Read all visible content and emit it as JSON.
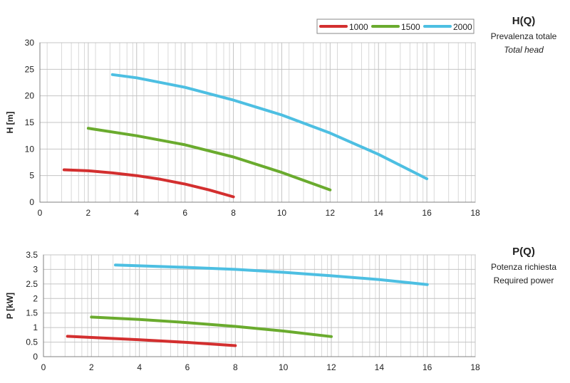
{
  "panels": {
    "head": {
      "title": "H(Q)",
      "subtitle_it": "Prevalenza totale",
      "subtitle_en": "Total head"
    },
    "power": {
      "title": "P(Q)",
      "subtitle_it": "Potenza richiesta",
      "subtitle_en": "Required power"
    }
  },
  "chart_data": [
    {
      "type": "line",
      "title": "H(Q)",
      "xlabel": "",
      "ylabel": "H [m]",
      "xlim": [
        0,
        18
      ],
      "ylim": [
        0,
        30
      ],
      "xticks": [
        0,
        2,
        4,
        6,
        8,
        10,
        12,
        14,
        16,
        18
      ],
      "yticks": [
        0,
        5,
        10,
        15,
        20,
        25,
        30
      ],
      "grid": true,
      "legend": "top-right",
      "series": [
        {
          "name": "1000",
          "color": "#d32f2f",
          "x": [
            1,
            2,
            3,
            4,
            5,
            6,
            7,
            8
          ],
          "y": [
            6.1,
            5.9,
            5.5,
            5.0,
            4.3,
            3.4,
            2.3,
            1.0
          ]
        },
        {
          "name": "1500",
          "color": "#6aab2e",
          "x": [
            2,
            4,
            6,
            8,
            10,
            12
          ],
          "y": [
            13.9,
            12.5,
            10.8,
            8.5,
            5.6,
            2.3
          ]
        },
        {
          "name": "2000",
          "color": "#4dbfe2",
          "x": [
            3,
            4,
            6,
            8,
            10,
            12,
            14,
            16
          ],
          "y": [
            24.0,
            23.4,
            21.6,
            19.2,
            16.4,
            13.0,
            9.0,
            4.4
          ]
        }
      ]
    },
    {
      "type": "line",
      "title": "P(Q)",
      "xlabel": "",
      "ylabel": "P [kW]",
      "xlim": [
        0,
        18
      ],
      "ylim": [
        0,
        3.5
      ],
      "xticks": [
        0,
        2,
        4,
        6,
        8,
        10,
        12,
        14,
        16,
        18
      ],
      "yticks": [
        0,
        0.5,
        1,
        1.5,
        2,
        2.5,
        3,
        3.5
      ],
      "grid": true,
      "legend": "none",
      "series": [
        {
          "name": "1000",
          "color": "#d32f2f",
          "x": [
            1,
            2,
            4,
            6,
            8
          ],
          "y": [
            0.7,
            0.66,
            0.58,
            0.49,
            0.38
          ]
        },
        {
          "name": "1500",
          "color": "#6aab2e",
          "x": [
            2,
            4,
            6,
            8,
            10,
            12
          ],
          "y": [
            1.36,
            1.28,
            1.17,
            1.04,
            0.88,
            0.69
          ]
        },
        {
          "name": "2000",
          "color": "#4dbfe2",
          "x": [
            3,
            6,
            8,
            10,
            12,
            14,
            16
          ],
          "y": [
            3.15,
            3.07,
            3.0,
            2.9,
            2.78,
            2.65,
            2.48
          ]
        }
      ]
    }
  ]
}
